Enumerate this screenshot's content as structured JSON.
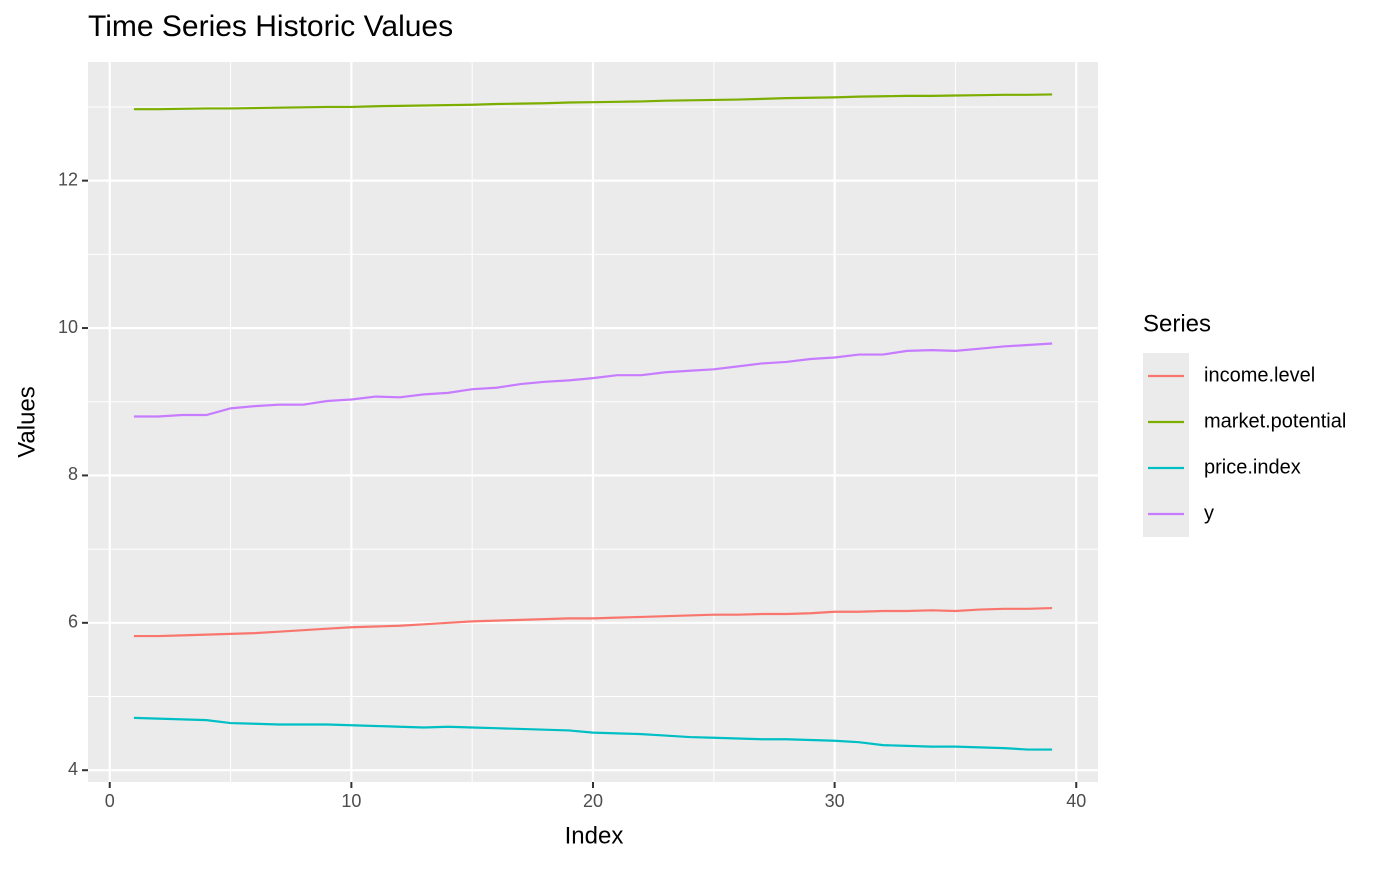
{
  "chart_data": {
    "type": "line",
    "title": "Time Series Historic Values",
    "x_label": "Index",
    "y_label": "Values",
    "x": [
      1,
      2,
      3,
      4,
      5,
      6,
      7,
      8,
      9,
      10,
      11,
      12,
      13,
      14,
      15,
      16,
      17,
      18,
      19,
      20,
      21,
      22,
      23,
      24,
      25,
      26,
      27,
      28,
      29,
      30,
      31,
      32,
      33,
      34,
      35,
      36,
      37,
      38,
      39
    ],
    "series": [
      {
        "name": "income.level",
        "color": "#F8766D",
        "values": [
          5.82,
          5.82,
          5.83,
          5.84,
          5.85,
          5.86,
          5.88,
          5.9,
          5.92,
          5.94,
          5.95,
          5.96,
          5.98,
          6.0,
          6.02,
          6.03,
          6.04,
          6.05,
          6.06,
          6.06,
          6.07,
          6.08,
          6.09,
          6.1,
          6.11,
          6.11,
          6.12,
          6.12,
          6.13,
          6.15,
          6.15,
          6.16,
          6.16,
          6.17,
          6.16,
          6.18,
          6.19,
          6.19,
          6.2
        ]
      },
      {
        "name": "market.potential",
        "color": "#7CAE00",
        "values": [
          12.97,
          12.97,
          12.975,
          12.98,
          12.98,
          12.985,
          12.99,
          12.995,
          13.0,
          13.0,
          13.01,
          13.015,
          13.02,
          13.025,
          13.03,
          13.04,
          13.045,
          13.05,
          13.06,
          13.065,
          13.07,
          13.075,
          13.085,
          13.09,
          13.095,
          13.1,
          13.11,
          13.12,
          13.125,
          13.13,
          13.14,
          13.145,
          13.15,
          13.15,
          13.155,
          13.16,
          13.165,
          13.165,
          13.17
        ]
      },
      {
        "name": "price.index",
        "color": "#00BFC4",
        "values": [
          4.71,
          4.7,
          4.69,
          4.68,
          4.64,
          4.63,
          4.62,
          4.62,
          4.62,
          4.61,
          4.6,
          4.59,
          4.58,
          4.59,
          4.58,
          4.57,
          4.56,
          4.55,
          4.54,
          4.51,
          4.5,
          4.49,
          4.47,
          4.45,
          4.44,
          4.43,
          4.42,
          4.42,
          4.41,
          4.4,
          4.38,
          4.34,
          4.33,
          4.32,
          4.32,
          4.31,
          4.3,
          4.28,
          4.28
        ]
      },
      {
        "name": "y",
        "color": "#C77CFF",
        "values": [
          8.8,
          8.8,
          8.82,
          8.82,
          8.91,
          8.94,
          8.96,
          8.96,
          9.01,
          9.03,
          9.07,
          9.06,
          9.1,
          9.12,
          9.17,
          9.19,
          9.24,
          9.27,
          9.29,
          9.32,
          9.36,
          9.36,
          9.4,
          9.42,
          9.44,
          9.48,
          9.52,
          9.54,
          9.58,
          9.6,
          9.64,
          9.64,
          9.69,
          9.7,
          9.69,
          9.72,
          9.75,
          9.77,
          9.79
        ]
      }
    ],
    "legend_title": "Series",
    "legend_position": "right",
    "xlim": [
      -0.9,
      40.9
    ],
    "xticks": [
      0,
      10,
      20,
      30,
      40
    ],
    "x_minor_ticks": [
      5,
      15,
      25,
      35
    ],
    "ylim": [
      3.84,
      13.61
    ],
    "yticks": [
      4,
      6,
      8,
      10,
      12
    ],
    "y_minor_ticks": [
      5,
      7,
      9,
      11,
      13
    ],
    "grid": true
  }
}
